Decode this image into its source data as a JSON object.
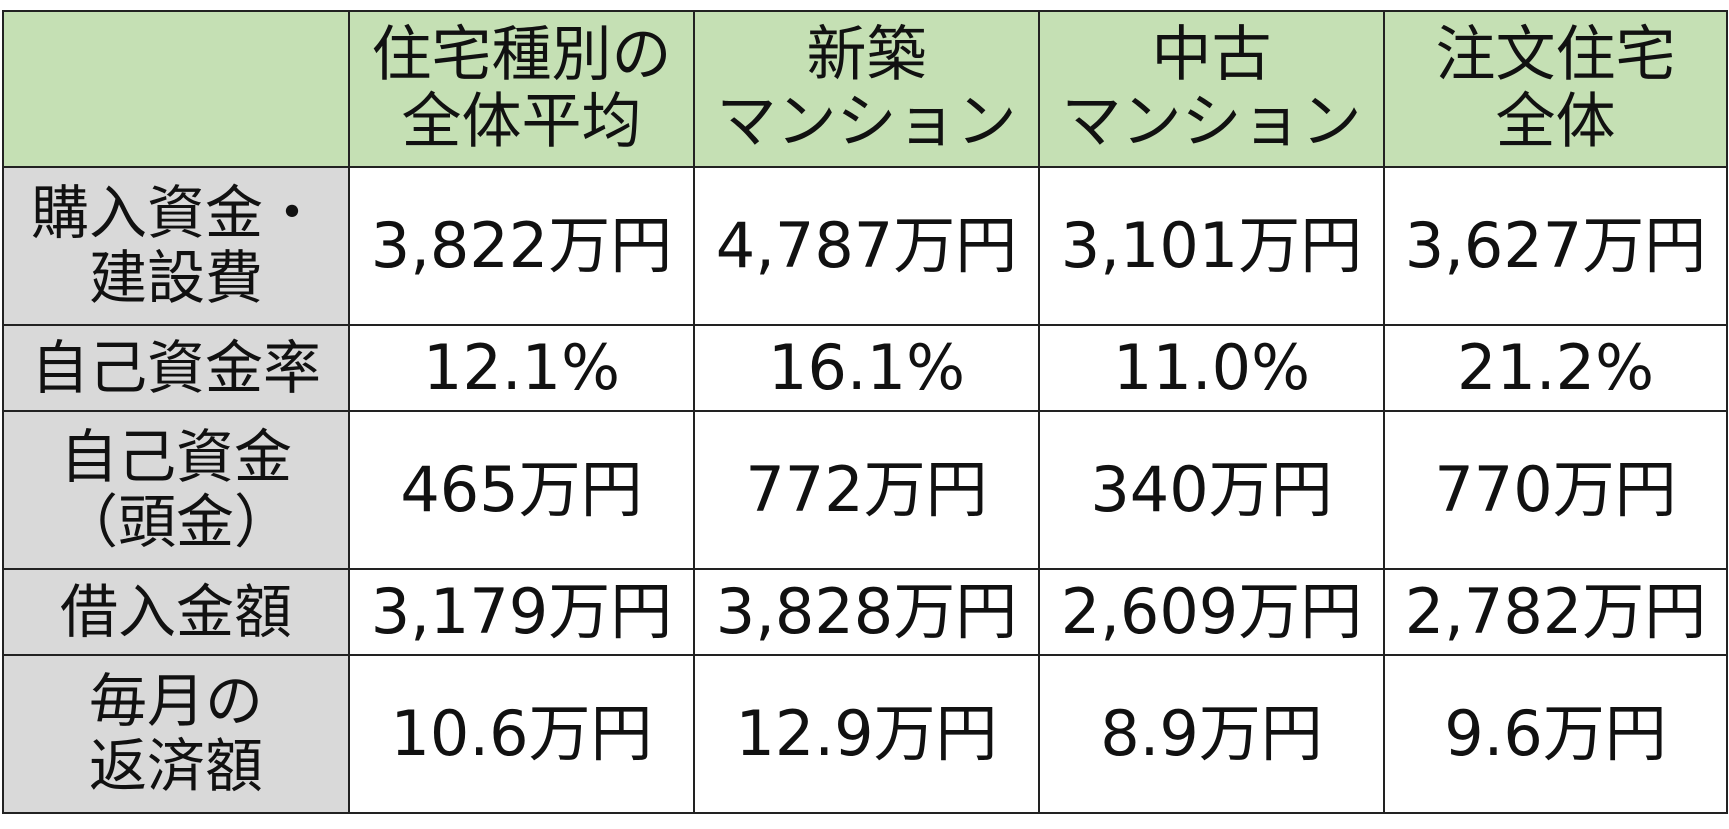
{
  "table": {
    "columns": [
      [
        "住宅種別の",
        "全体平均"
      ],
      [
        "新築",
        "マンション"
      ],
      [
        "中古",
        "マンション"
      ],
      [
        "注文住宅",
        "全体"
      ]
    ],
    "rows": [
      {
        "label": [
          "購入資金・",
          "建設費"
        ],
        "cells": [
          "3,822万円",
          "4,787万円",
          "3,101万円",
          "3,627万円"
        ]
      },
      {
        "label": [
          "自己資金率"
        ],
        "cells": [
          "12.1%",
          "16.1%",
          "11.0%",
          "21.2%"
        ]
      },
      {
        "label": [
          "自己資金",
          "（頭金）"
        ],
        "cells": [
          "465万円",
          "772万円",
          "340万円",
          "770万円"
        ]
      },
      {
        "label": [
          "借入金額"
        ],
        "cells": [
          "3,179万円",
          "3,828万円",
          "2,609万円",
          "2,782万円"
        ]
      },
      {
        "label": [
          "毎月の",
          "返済額"
        ],
        "cells": [
          "10.6万円",
          "12.9万円",
          "8.9万円",
          "9.6万円"
        ]
      }
    ]
  }
}
